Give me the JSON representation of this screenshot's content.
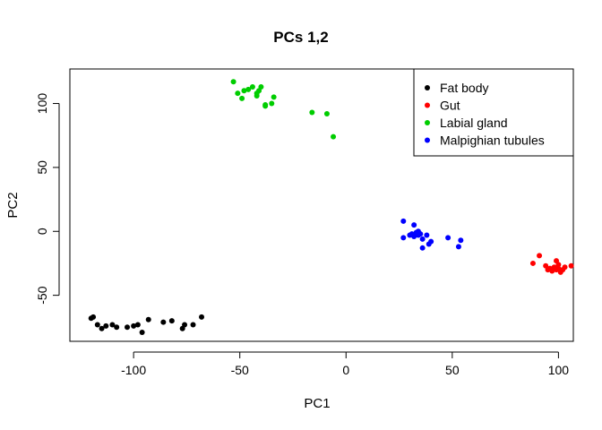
{
  "chart_data": {
    "type": "scatter",
    "title": "PCs 1,2",
    "xlabel": "PC1",
    "ylabel": "PC2",
    "xlim": [
      -130,
      107
    ],
    "ylim": [
      -86,
      127
    ],
    "x_ticks": [
      -100,
      -50,
      0,
      50,
      100
    ],
    "y_ticks": [
      -50,
      0,
      50,
      100
    ],
    "grid": false,
    "legend_position": "top-right",
    "series": [
      {
        "name": "Fat body",
        "color": "#000000",
        "points": [
          [
            -120,
            -68
          ],
          [
            -119,
            -67
          ],
          [
            -117,
            -73
          ],
          [
            -115,
            -76
          ],
          [
            -113,
            -74
          ],
          [
            -110,
            -73
          ],
          [
            -108,
            -75
          ],
          [
            -103,
            -75
          ],
          [
            -100,
            -74
          ],
          [
            -98,
            -73
          ],
          [
            -96,
            -79
          ],
          [
            -93,
            -69
          ],
          [
            -86,
            -71
          ],
          [
            -82,
            -70
          ],
          [
            -77,
            -76
          ],
          [
            -76,
            -73
          ],
          [
            -72,
            -73
          ],
          [
            -68,
            -67
          ]
        ]
      },
      {
        "name": "Gut",
        "color": "#ff0000",
        "points": [
          [
            88,
            -25
          ],
          [
            91,
            -19
          ],
          [
            94,
            -27
          ],
          [
            95,
            -30
          ],
          [
            96,
            -29
          ],
          [
            97,
            -31
          ],
          [
            98,
            -28
          ],
          [
            99,
            -30
          ],
          [
            100,
            -29
          ],
          [
            101,
            -32
          ],
          [
            102,
            -30
          ],
          [
            103,
            -28
          ],
          [
            106,
            -27
          ],
          [
            99,
            -23
          ],
          [
            100,
            -26
          ]
        ]
      },
      {
        "name": "Labial gland",
        "color": "#00cd00",
        "points": [
          [
            -53,
            117
          ],
          [
            -51,
            108
          ],
          [
            -49,
            104
          ],
          [
            -48,
            110
          ],
          [
            -46,
            111
          ],
          [
            -44,
            113
          ],
          [
            -42,
            108
          ],
          [
            -42,
            106
          ],
          [
            -41,
            110
          ],
          [
            -40,
            113
          ],
          [
            -38,
            99
          ],
          [
            -38,
            98
          ],
          [
            -35,
            100
          ],
          [
            -34,
            105
          ],
          [
            -16,
            93
          ],
          [
            -9,
            92
          ],
          [
            -6,
            74
          ]
        ]
      },
      {
        "name": "Malpighian tubules",
        "color": "#0000ff",
        "points": [
          [
            27,
            8
          ],
          [
            27,
            -5
          ],
          [
            30,
            -3
          ],
          [
            31,
            -2
          ],
          [
            32,
            -4
          ],
          [
            32,
            5
          ],
          [
            33,
            -1
          ],
          [
            34,
            0
          ],
          [
            34,
            -3
          ],
          [
            35,
            -2
          ],
          [
            36,
            -6
          ],
          [
            36,
            -13
          ],
          [
            38,
            -3
          ],
          [
            39,
            -10
          ],
          [
            40,
            -8
          ],
          [
            48,
            -5
          ],
          [
            53,
            -12
          ],
          [
            54,
            -7
          ]
        ]
      }
    ]
  }
}
